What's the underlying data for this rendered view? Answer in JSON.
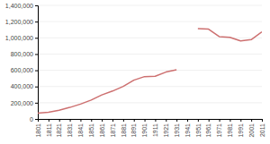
{
  "chart_data": {
    "type": "line",
    "x": [
      1801,
      1811,
      1821,
      1831,
      1841,
      1851,
      1861,
      1871,
      1881,
      1891,
      1901,
      1911,
      1921,
      1931,
      1941,
      1951,
      1961,
      1971,
      1981,
      1991,
      2001,
      2011
    ],
    "values": [
      70670,
      82960,
      106722,
      142251,
      182922,
      232841,
      296076,
      343787,
      400774,
      478113,
      522182,
      525833,
      577904,
      605093,
      null,
      1112340,
      1107187,
      1014670,
      1006527,
      961041,
      977087,
      1073045
    ],
    "color": "#cd7070",
    "xlim": [
      1801,
      2011
    ],
    "xticks": [
      1801,
      1811,
      1821,
      1831,
      1841,
      1851,
      1861,
      1871,
      1881,
      1891,
      1901,
      1911,
      1921,
      1931,
      1941,
      1951,
      1961,
      1971,
      1981,
      1991,
      2001,
      2011
    ],
    "ylim": [
      0,
      1400000
    ],
    "yticks": [
      0,
      {
        "value": 200000,
        "label": "200,000"
      },
      {
        "value": 400000,
        "label": "400,000"
      },
      {
        "value": 600000,
        "label": "600,000"
      },
      {
        "value": 800000,
        "label": "800,000"
      },
      {
        "value": 1000000,
        "label": "1,000,000"
      },
      {
        "value": 1200000,
        "label": "1,200,000"
      },
      {
        "value": 1400000,
        "label": "1,400,000"
      }
    ],
    "grid": true
  }
}
